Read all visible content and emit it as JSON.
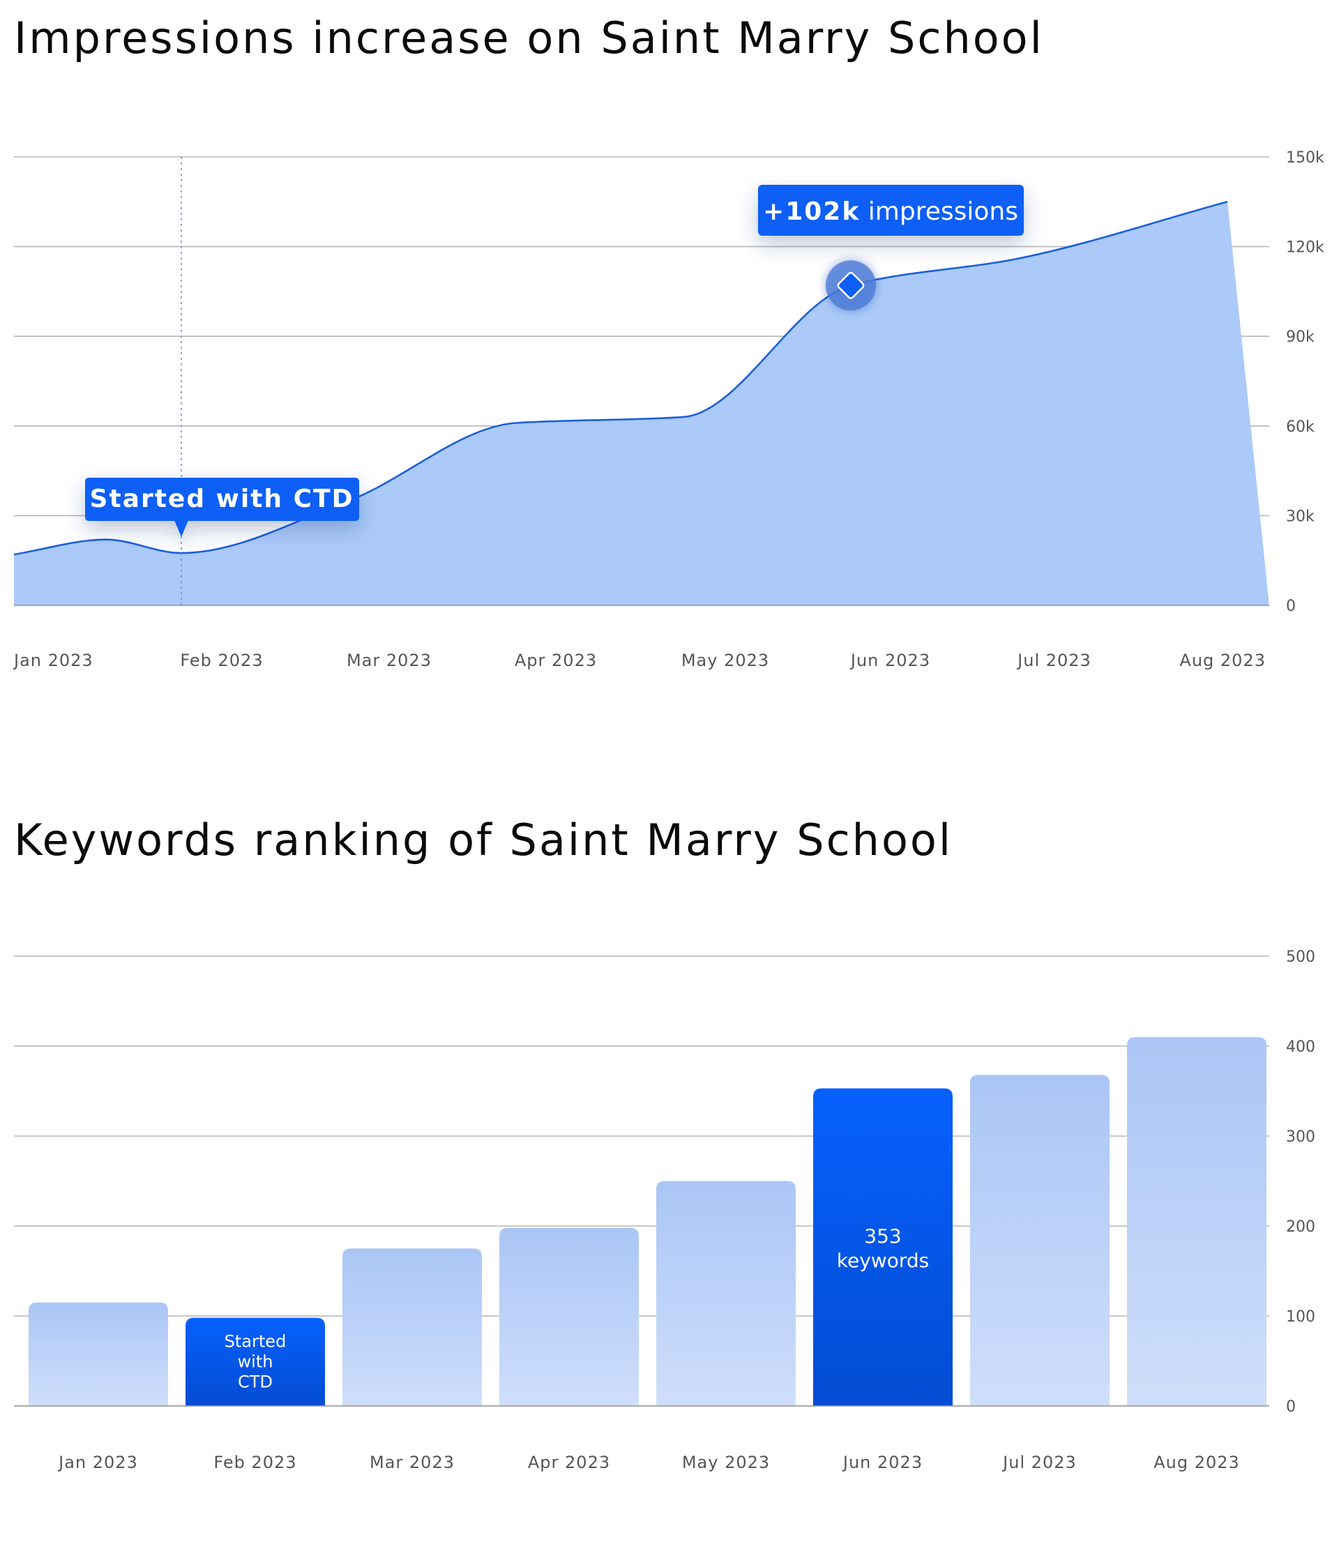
{
  "chart_data": [
    {
      "type": "area",
      "title": "Impressions increase on Saint Marry School",
      "x": [
        "Jan 2023",
        "Feb 2023",
        "Mar 2023",
        "Apr 2023",
        "May 2023",
        "Jun 2023",
        "Jul 2023",
        "Aug 2023"
      ],
      "y_ticks": [
        "0",
        "30k",
        "60k",
        "90k",
        "120k",
        "150k"
      ],
      "ylim": [
        0,
        150000
      ],
      "grid": true,
      "legend": "none",
      "y_axis_side": "right",
      "series": [
        {
          "x": [
            "Jan 2023",
            "Jan 2023",
            "Feb 2023",
            "Mar 2023",
            "Apr 2023",
            "May 2023",
            "Jun 2023",
            "Jul 2023",
            "Aug 2023"
          ],
          "x_offset": [
            0,
            0.55,
            1,
            2,
            3,
            4,
            5,
            6,
            7.25
          ],
          "values": [
            17000,
            22000,
            17500,
            35000,
            61000,
            63000,
            107000,
            116000,
            135000
          ]
        }
      ],
      "annotations": [
        {
          "x": "Feb 2023",
          "text": "Started with CTD",
          "style": "dashed-vline"
        },
        {
          "x": "Jun 2023",
          "value": 107000,
          "text_bold": "+102k",
          "text": "impressions"
        }
      ],
      "colors": {
        "line": "#1a5ee0",
        "fill": "#abcaf9",
        "accent": "#0b5ff5",
        "marker": "#2a68e6"
      }
    },
    {
      "type": "bar",
      "title": "Keywords ranking of Saint Marry School",
      "categories": [
        "Jan 2023",
        "Feb 2023",
        "Mar 2023",
        "Apr 2023",
        "May 2023",
        "Jun 2023",
        "Jul 2023",
        "Aug 2023"
      ],
      "values": [
        115,
        98,
        175,
        198,
        250,
        353,
        368,
        410
      ],
      "y_ticks": [
        "0",
        "100",
        "200",
        "300",
        "400",
        "500"
      ],
      "ylim": [
        0,
        500
      ],
      "grid": true,
      "legend": "none",
      "y_axis_side": "right",
      "highlighted": [
        {
          "index": 1,
          "label_lines": [
            "Started",
            "with",
            "CTD"
          ]
        },
        {
          "index": 5,
          "label_lines": [
            "353",
            "keywords"
          ]
        }
      ],
      "colors": {
        "bar_top": "#aac6f6",
        "bar_bottom": "#cfdefa",
        "highlight_top": "#0660fd",
        "highlight_bottom": "#034cd2"
      }
    }
  ]
}
